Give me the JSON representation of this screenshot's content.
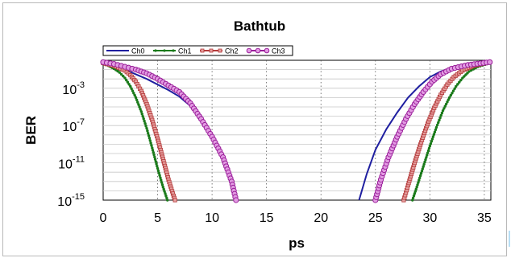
{
  "chart_data": {
    "type": "line",
    "title": "Bathtub",
    "xlabel": "ps",
    "ylabel": "BER",
    "xlim": [
      0,
      35.6
    ],
    "ylim_log10": [
      -15,
      0
    ],
    "y_scale": "log",
    "x_ticks": [
      0,
      5,
      10,
      15,
      20,
      25,
      30,
      35
    ],
    "x_tick_labels": [
      "0",
      "5",
      "10",
      "15",
      "20",
      "25",
      "30",
      "35"
    ],
    "y_ticks": [
      {
        "base": "10",
        "exp": "-3",
        "log": -3
      },
      {
        "base": "10",
        "exp": "-7",
        "log": -7
      },
      {
        "base": "10",
        "exp": "-11",
        "log": -11
      },
      {
        "base": "10",
        "exp": "-15",
        "log": -15
      }
    ],
    "grid": true,
    "legend_position": "top",
    "series": [
      {
        "name": "Ch0",
        "color": "#1f1fa0",
        "marker": "none",
        "left": [
          [
            0,
            -0.3
          ],
          [
            1,
            -0.6
          ],
          [
            2,
            -1.0
          ],
          [
            3,
            -1.5
          ],
          [
            4,
            -2.0
          ],
          [
            5,
            -2.6
          ],
          [
            6,
            -3.2
          ],
          [
            7,
            -3.9
          ],
          [
            8,
            -4.9
          ],
          [
            9,
            -6.5
          ],
          [
            10,
            -8.4
          ],
          [
            11,
            -10.5
          ],
          [
            11.8,
            -13.2
          ],
          [
            12.1,
            -15
          ]
        ],
        "right": [
          [
            23.5,
            -15
          ],
          [
            24.2,
            -12.2
          ],
          [
            25,
            -9.6
          ],
          [
            26,
            -7.4
          ],
          [
            27,
            -5.6
          ],
          [
            28,
            -4.0
          ],
          [
            29,
            -2.8
          ],
          [
            30,
            -1.8
          ],
          [
            31,
            -1.2
          ],
          [
            32,
            -0.8
          ],
          [
            33,
            -0.5
          ],
          [
            34,
            -0.3
          ],
          [
            35.5,
            -0.1
          ]
        ]
      },
      {
        "name": "Ch1",
        "color": "#1a7a1a",
        "marker": "dot",
        "left": [
          [
            0,
            -0.4
          ],
          [
            0.5,
            -0.6
          ],
          [
            1,
            -0.9
          ],
          [
            1.5,
            -1.3
          ],
          [
            2,
            -1.9
          ],
          [
            2.5,
            -2.8
          ],
          [
            3,
            -4.0
          ],
          [
            3.5,
            -5.5
          ],
          [
            4,
            -7.3
          ],
          [
            4.5,
            -9.4
          ],
          [
            5,
            -11.6
          ],
          [
            5.5,
            -13.6
          ],
          [
            5.9,
            -15
          ]
        ],
        "right": [
          [
            28.4,
            -15
          ],
          [
            28.8,
            -13.6
          ],
          [
            29.4,
            -11.4
          ],
          [
            30,
            -9.2
          ],
          [
            30.6,
            -7.2
          ],
          [
            31.2,
            -5.4
          ],
          [
            31.8,
            -4.0
          ],
          [
            32.4,
            -2.8
          ],
          [
            33,
            -1.9
          ],
          [
            33.6,
            -1.2
          ],
          [
            34.4,
            -0.7
          ],
          [
            35.5,
            -0.3
          ]
        ]
      },
      {
        "name": "Ch2",
        "color": "#b33a3a",
        "marker": "square",
        "left": [
          [
            0,
            -0.3
          ],
          [
            1,
            -0.6
          ],
          [
            2,
            -1.1
          ],
          [
            2.5,
            -1.6
          ],
          [
            3,
            -2.3
          ],
          [
            3.5,
            -3.3
          ],
          [
            4,
            -4.7
          ],
          [
            4.5,
            -6.4
          ],
          [
            5,
            -8.4
          ],
          [
            5.5,
            -10.6
          ],
          [
            6,
            -12.8
          ],
          [
            6.4,
            -14.3
          ],
          [
            6.6,
            -15
          ]
        ],
        "right": [
          [
            27.6,
            -15
          ],
          [
            28,
            -13.4
          ],
          [
            28.6,
            -11.0
          ],
          [
            29.2,
            -8.8
          ],
          [
            29.8,
            -6.8
          ],
          [
            30.4,
            -5.1
          ],
          [
            31,
            -3.7
          ],
          [
            31.6,
            -2.6
          ],
          [
            32.2,
            -1.8
          ],
          [
            33,
            -1.1
          ],
          [
            34,
            -0.6
          ],
          [
            35.5,
            -0.2
          ]
        ]
      },
      {
        "name": "Ch3",
        "color": "#9a1f9a",
        "marker": "circle",
        "left": [
          [
            0,
            -0.2
          ],
          [
            1,
            -0.4
          ],
          [
            2,
            -0.7
          ],
          [
            3,
            -1.0
          ],
          [
            4,
            -1.4
          ],
          [
            5,
            -2.0
          ],
          [
            6,
            -2.7
          ],
          [
            7,
            -3.4
          ],
          [
            8,
            -4.6
          ],
          [
            9,
            -6.3
          ],
          [
            10,
            -8.2
          ],
          [
            11,
            -10.4
          ],
          [
            11.8,
            -13.0
          ],
          [
            12.2,
            -15
          ]
        ],
        "right": [
          [
            25,
            -15
          ],
          [
            25.5,
            -12.8
          ],
          [
            26.2,
            -10.4
          ],
          [
            27,
            -8.2
          ],
          [
            27.8,
            -6.3
          ],
          [
            28.6,
            -4.7
          ],
          [
            29.4,
            -3.4
          ],
          [
            30.2,
            -2.3
          ],
          [
            31,
            -1.5
          ],
          [
            32,
            -0.9
          ],
          [
            33.5,
            -0.5
          ],
          [
            35.5,
            -0.2
          ]
        ]
      }
    ]
  }
}
